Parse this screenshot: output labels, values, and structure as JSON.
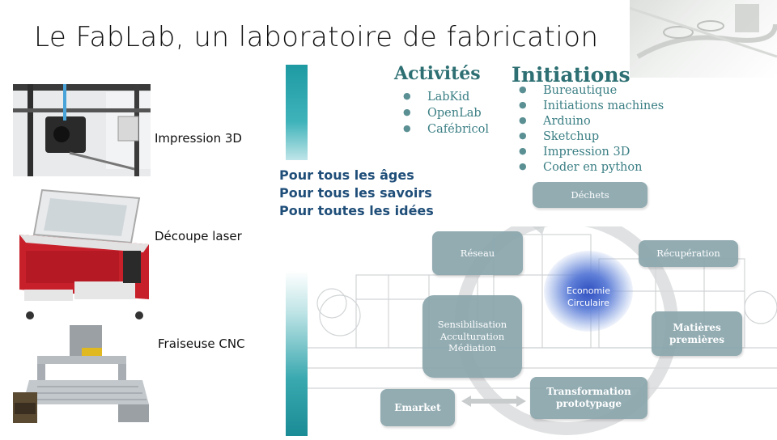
{
  "slide": {
    "title": "Le FabLab, un laboratoire de fabrication"
  },
  "machines": [
    {
      "label": "Impression 3D"
    },
    {
      "label": "Découpe laser"
    },
    {
      "label": "Fraiseuse CNC"
    }
  ],
  "activites": {
    "heading": "Activités",
    "items": [
      "LabKid",
      "OpenLab",
      "Cafébricol"
    ]
  },
  "initiations": {
    "heading": "Initiations",
    "items": [
      "Bureautique",
      "Initiations machines",
      "Arduino",
      "Sketchup",
      "Impression 3D",
      "Coder en python"
    ]
  },
  "taglines": [
    "Pour tous les âges",
    "Pour tous les savoirs",
    "Pour toutes les idées"
  ],
  "cycle": {
    "center": [
      "Economie",
      "Circulaire"
    ],
    "nodes": {
      "dechets": "Déchets",
      "recuperation": "Récupération",
      "matieres": [
        "Matières",
        "premières"
      ],
      "transformation": [
        "Transformation",
        "prototypage"
      ],
      "emarket": "Emarket",
      "sensibilisation": [
        "Sensibilisation",
        "Acculturation",
        "Médiation"
      ],
      "reseau": "Réseau"
    }
  },
  "colors": {
    "accent_teal": "#1e9aa3",
    "heading_teal": "#2d6f72",
    "tagline_blue": "#1f4e79",
    "box_grey": "#8aa6ad",
    "center_blue": "#2f4fc0"
  }
}
